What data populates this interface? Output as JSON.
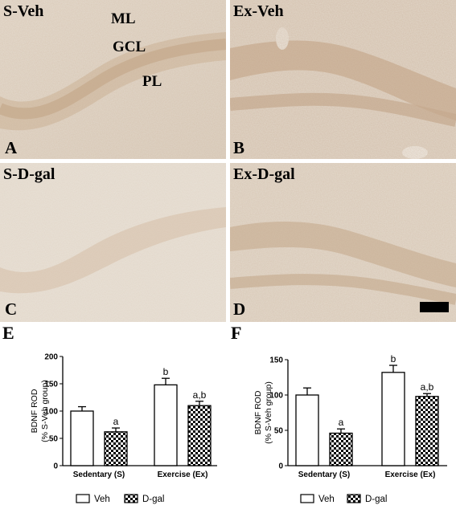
{
  "panels": {
    "A": {
      "title": "S-Veh",
      "letter": "A",
      "regions": {
        "ml": "ML",
        "gcl": "GCL",
        "pl": "PL"
      }
    },
    "B": {
      "title": "Ex-Veh",
      "letter": "B"
    },
    "C": {
      "title": "S-D-gal",
      "letter": "C"
    },
    "D": {
      "title": "Ex-D-gal",
      "letter": "D"
    }
  },
  "figure_letters": {
    "E": "E",
    "F": "F"
  },
  "chart_data": [
    {
      "type": "bar",
      "panel": "E",
      "ylabel_line1": "BDNF ROD",
      "ylabel_line2": "(% S-Veh group)",
      "categories": [
        "Sedentary (S)",
        "Exercise (Ex)"
      ],
      "ylim": [
        0,
        200
      ],
      "yticks": [
        0,
        50,
        100,
        150,
        200
      ],
      "series": [
        {
          "name": "Veh",
          "values": [
            100,
            148
          ],
          "errors": [
            8,
            12
          ],
          "annotations": [
            "",
            "b"
          ],
          "fill": "#ffffff"
        },
        {
          "name": "D-gal",
          "values": [
            62,
            110
          ],
          "errors": [
            7,
            8
          ],
          "annotations": [
            "a",
            "a,b"
          ],
          "fill": "checker"
        }
      ],
      "legend_position": "bottom"
    },
    {
      "type": "bar",
      "panel": "F",
      "ylabel_line1": "BDNF ROD",
      "ylabel_line2": "(% S-Veh group)",
      "categories": [
        "Sedentary (S)",
        "Exercise (Ex)"
      ],
      "ylim": [
        0,
        150
      ],
      "yticks": [
        0,
        50,
        100,
        150
      ],
      "series": [
        {
          "name": "Veh",
          "values": [
            100,
            132
          ],
          "errors": [
            10,
            10
          ],
          "annotations": [
            "",
            "b"
          ],
          "fill": "#ffffff"
        },
        {
          "name": "D-gal",
          "values": [
            46,
            98
          ],
          "errors": [
            6,
            4
          ],
          "annotations": [
            "a",
            "a,b"
          ],
          "fill": "checker"
        }
      ],
      "legend_position": "bottom"
    }
  ]
}
